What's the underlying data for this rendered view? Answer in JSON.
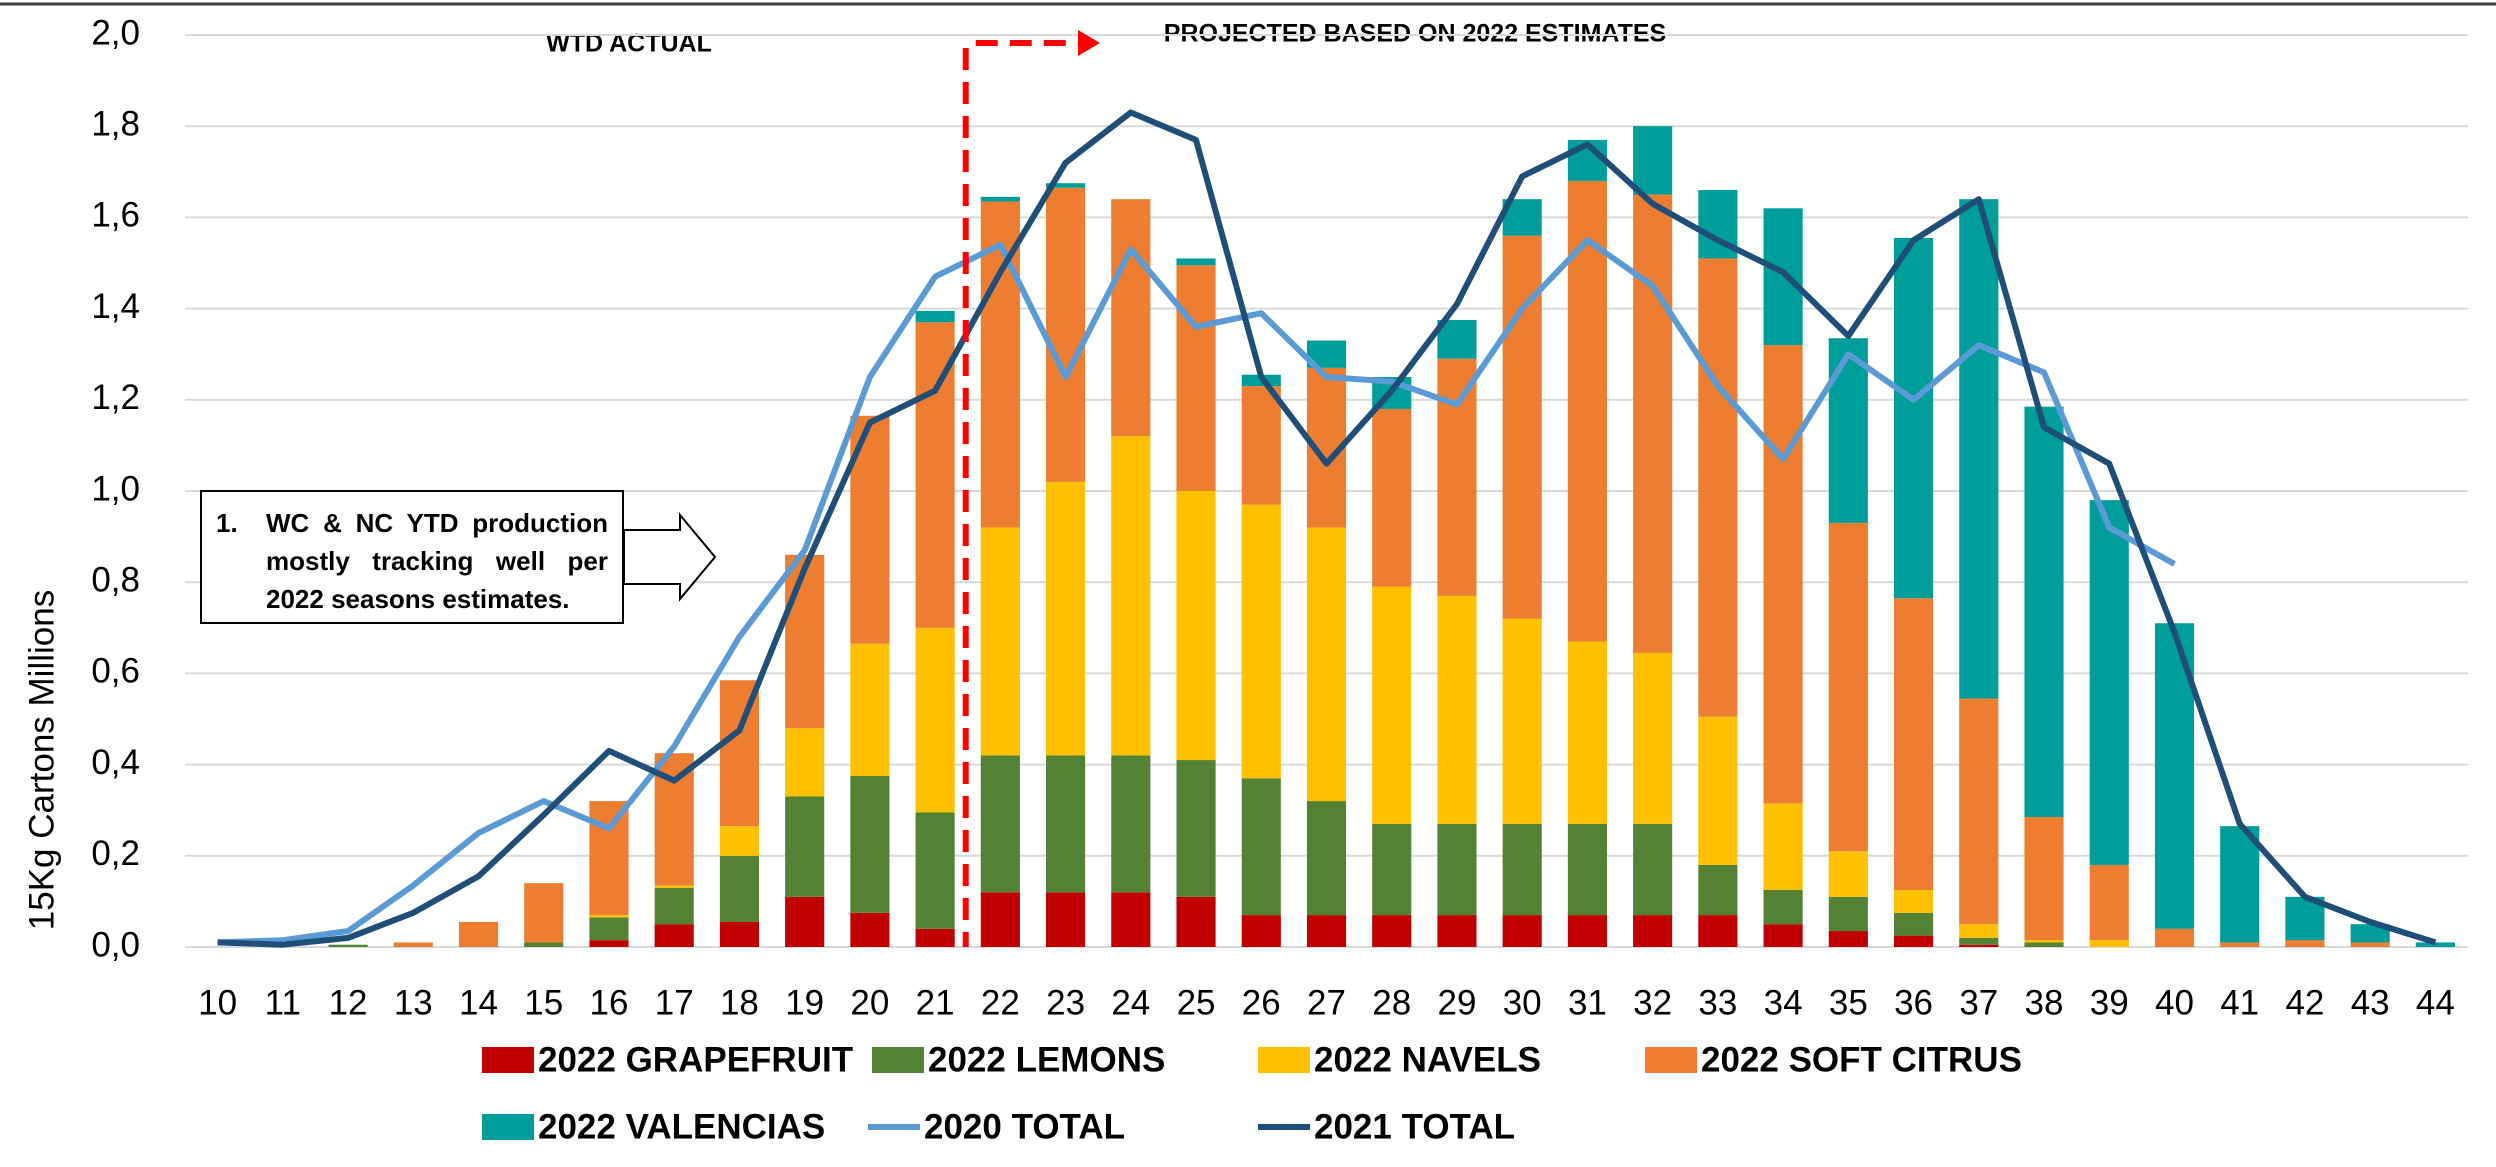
{
  "chart_data": {
    "type": "bar",
    "stacked": true,
    "y_label": "15Kg Cartons Millions",
    "annotations": {
      "left": "WTD ACTUAL",
      "right": "PROJECTED BASED ON 2022 ESTIMATES",
      "callout_number": "1.",
      "callout_text": "WC & NC YTD production mostly tracking well per 2022 seasons estimates."
    },
    "categories": [
      "10",
      "11",
      "12",
      "13",
      "14",
      "15",
      "16",
      "17",
      "18",
      "19",
      "20",
      "21",
      "22",
      "23",
      "24",
      "25",
      "26",
      "27",
      "28",
      "29",
      "30",
      "31",
      "32",
      "33",
      "34",
      "35",
      "36",
      "37",
      "38",
      "39",
      "40",
      "41",
      "42",
      "43",
      "44"
    ],
    "ylim": [
      0,
      2
    ],
    "yticks": [
      {
        "value": 0,
        "label": "0,0"
      },
      {
        "value": 0.2,
        "label": "0,2"
      },
      {
        "value": 0.4,
        "label": "0,4"
      },
      {
        "value": 0.6,
        "label": "0,6"
      },
      {
        "value": 0.8,
        "label": "0,8"
      },
      {
        "value": 1,
        "label": "1,0"
      },
      {
        "value": 1.2,
        "label": "1,2"
      },
      {
        "value": 1.4,
        "label": "1,4"
      },
      {
        "value": 1.6,
        "label": "1,6"
      },
      {
        "value": 1.8,
        "label": "1,8"
      },
      {
        "value": 2,
        "label": "2,0"
      }
    ],
    "grid": true,
    "series": [
      {
        "name": "2022 GRAPEFRUIT",
        "color": "#c00000",
        "values": [
          0,
          0,
          0,
          0,
          0,
          0,
          0.015,
          0.05,
          0.055,
          0.11,
          0.075,
          0.04,
          0.12,
          0.12,
          0.12,
          0.11,
          0.07,
          0.07,
          0.07,
          0.07,
          0.07,
          0.07,
          0.07,
          0.07,
          0.05,
          0.035,
          0.025,
          0.005,
          0,
          0,
          0,
          0,
          0,
          0,
          0
        ]
      },
      {
        "name": "2022 LEMONS",
        "color": "#548235",
        "values": [
          0,
          0,
          0.005,
          0,
          0,
          0.01,
          0.05,
          0.08,
          0.145,
          0.22,
          0.3,
          0.255,
          0.3,
          0.3,
          0.3,
          0.3,
          0.3,
          0.25,
          0.2,
          0.2,
          0.2,
          0.2,
          0.2,
          0.11,
          0.075,
          0.075,
          0.05,
          0.015,
          0.01,
          0,
          0,
          0,
          0,
          0,
          0
        ]
      },
      {
        "name": "2022 NAVELS",
        "color": "#ffc000",
        "values": [
          0,
          0,
          0,
          0,
          0,
          0,
          0.005,
          0.005,
          0.065,
          0.15,
          0.29,
          0.405,
          0.5,
          0.6,
          0.7,
          0.59,
          0.6,
          0.6,
          0.52,
          0.5,
          0.45,
          0.4,
          0.375,
          0.325,
          0.19,
          0.1,
          0.05,
          0.03,
          0.005,
          0.015,
          0,
          0,
          0,
          0,
          0
        ]
      },
      {
        "name": "2022 SOFT CITRUS",
        "color": "#ed7d31",
        "values": [
          0,
          0,
          0,
          0.01,
          0.055,
          0.13,
          0.25,
          0.29,
          0.32,
          0.38,
          0.5,
          0.67,
          0.715,
          0.645,
          0.52,
          0.495,
          0.26,
          0.35,
          0.39,
          0.52,
          0.84,
          1.01,
          1.005,
          1.005,
          1.005,
          0.72,
          0.64,
          0.495,
          0.27,
          0.165,
          0.04,
          0.01,
          0.015,
          0.01,
          0
        ]
      },
      {
        "name": "2022 VALENCIAS",
        "color": "#009e9a",
        "values": [
          0,
          0,
          0,
          0,
          0,
          0,
          0,
          0,
          0,
          0,
          0,
          0.025,
          0.01,
          0.01,
          0,
          0.015,
          0.025,
          0.06,
          0.07,
          0.085,
          0.08,
          0.09,
          0.15,
          0.15,
          0.3,
          0.405,
          0.79,
          1.095,
          0.9,
          0.8,
          0.67,
          0.255,
          0.095,
          0.04,
          0.01
        ]
      },
      {
        "name": "2020 TOTAL",
        "type": "line",
        "color": "#5b9bd5",
        "values": [
          0.01,
          0.015,
          0.035,
          0.135,
          0.25,
          0.32,
          0.26,
          0.44,
          0.68,
          0.87,
          1.25,
          1.47,
          1.54,
          1.25,
          1.53,
          1.36,
          1.39,
          1.25,
          1.24,
          1.19,
          1.4,
          1.55,
          1.45,
          1.23,
          1.07,
          1.3,
          1.2,
          1.32,
          1.26,
          0.92,
          0.84,
          null,
          null,
          null,
          null
        ]
      },
      {
        "name": "2021 TOTAL",
        "type": "line",
        "color": "#1f4e79",
        "values": [
          0.01,
          0.005,
          0.02,
          0.075,
          0.155,
          0.29,
          0.43,
          0.365,
          0.475,
          0.83,
          1.15,
          1.22,
          1.48,
          1.72,
          1.83,
          1.77,
          1.25,
          1.06,
          1.22,
          1.41,
          1.69,
          1.76,
          1.63,
          1.55,
          1.48,
          1.34,
          1.55,
          1.64,
          1.14,
          1.06,
          0.69,
          0.27,
          0.11,
          0.055,
          0.01
        ]
      }
    ]
  }
}
